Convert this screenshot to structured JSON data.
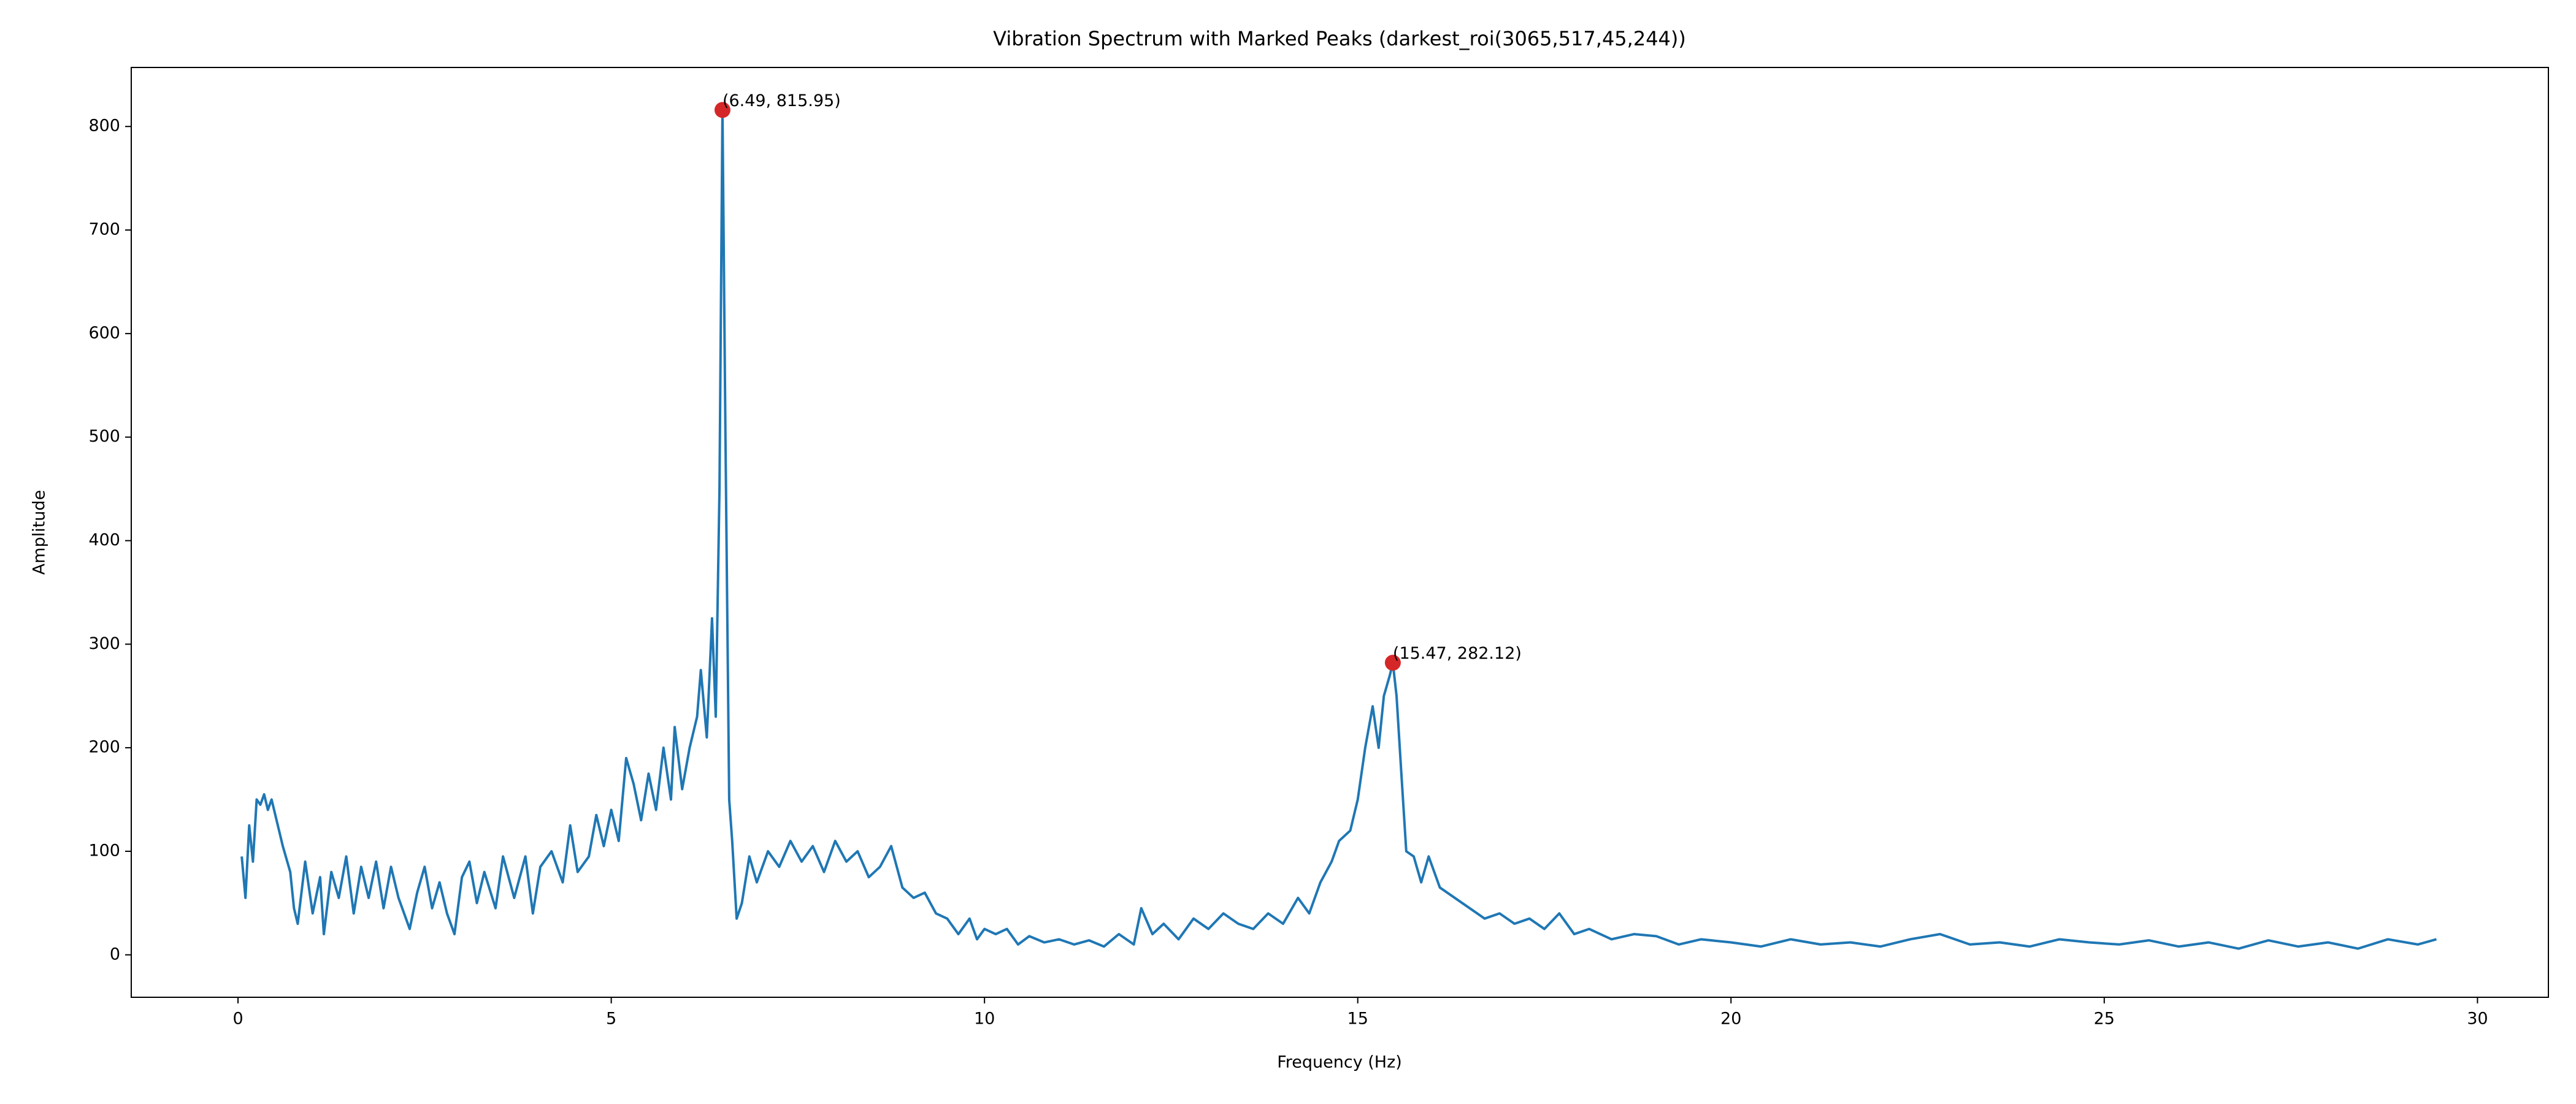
{
  "chart_data": {
    "type": "line",
    "title": "Vibration Spectrum with Marked Peaks (darkest_roi(3065,517,45,244))",
    "xlabel": "Frequency (Hz)",
    "ylabel": "Amplitude",
    "color": "#1f77b4",
    "x": [
      0.05,
      0.1,
      0.15,
      0.2,
      0.25,
      0.3,
      0.35,
      0.4,
      0.45,
      0.5,
      0.55,
      0.6,
      0.7,
      0.75,
      0.8,
      0.9,
      1.0,
      1.1,
      1.15,
      1.25,
      1.35,
      1.45,
      1.55,
      1.65,
      1.75,
      1.85,
      1.95,
      2.05,
      2.15,
      2.3,
      2.4,
      2.5,
      2.6,
      2.7,
      2.8,
      2.9,
      3.0,
      3.1,
      3.2,
      3.3,
      3.45,
      3.55,
      3.7,
      3.85,
      3.95,
      4.05,
      4.2,
      4.35,
      4.45,
      4.55,
      4.7,
      4.8,
      4.9,
      5.0,
      5.1,
      5.2,
      5.3,
      5.4,
      5.5,
      5.6,
      5.7,
      5.8,
      5.85,
      5.95,
      6.05,
      6.15,
      6.2,
      6.28,
      6.35,
      6.4,
      6.45,
      6.49,
      6.53,
      6.58,
      6.62,
      6.68,
      6.75,
      6.85,
      6.95,
      7.1,
      7.25,
      7.4,
      7.55,
      7.7,
      7.85,
      8.0,
      8.15,
      8.3,
      8.45,
      8.6,
      8.75,
      8.9,
      9.05,
      9.2,
      9.35,
      9.5,
      9.65,
      9.8,
      9.9,
      10.0,
      10.15,
      10.3,
      10.45,
      10.6,
      10.8,
      11.0,
      11.2,
      11.4,
      11.6,
      11.8,
      12.0,
      12.1,
      12.25,
      12.4,
      12.6,
      12.8,
      13.0,
      13.2,
      13.4,
      13.6,
      13.8,
      14.0,
      14.2,
      14.35,
      14.5,
      14.65,
      14.75,
      14.9,
      15.0,
      15.1,
      15.2,
      15.28,
      15.35,
      15.43,
      15.47,
      15.52,
      15.58,
      15.65,
      15.75,
      15.85,
      15.95,
      16.1,
      16.3,
      16.5,
      16.7,
      16.9,
      17.1,
      17.3,
      17.5,
      17.7,
      17.9,
      18.1,
      18.4,
      18.7,
      19.0,
      19.3,
      19.6,
      20.0,
      20.4,
      20.8,
      21.2,
      21.6,
      22.0,
      22.4,
      22.8,
      23.2,
      23.6,
      24.0,
      24.4,
      24.8,
      25.2,
      25.6,
      26.0,
      26.4,
      26.8,
      27.2,
      27.6,
      28.0,
      28.4,
      28.8,
      29.2,
      29.45
    ],
    "values": [
      95,
      55,
      125,
      90,
      150,
      145,
      155,
      140,
      150,
      135,
      120,
      105,
      80,
      45,
      30,
      90,
      40,
      75,
      20,
      80,
      55,
      95,
      40,
      85,
      55,
      90,
      45,
      85,
      55,
      25,
      60,
      85,
      45,
      70,
      40,
      20,
      75,
      90,
      50,
      80,
      45,
      95,
      55,
      95,
      40,
      85,
      100,
      70,
      125,
      80,
      95,
      135,
      105,
      140,
      110,
      190,
      165,
      130,
      175,
      140,
      200,
      150,
      220,
      160,
      200,
      230,
      275,
      210,
      325,
      230,
      450,
      815.95,
      500,
      150,
      110,
      35,
      50,
      95,
      70,
      100,
      85,
      110,
      90,
      105,
      80,
      110,
      90,
      100,
      75,
      85,
      105,
      65,
      55,
      60,
      40,
      35,
      20,
      35,
      15,
      25,
      20,
      25,
      10,
      18,
      12,
      15,
      10,
      14,
      8,
      20,
      10,
      45,
      20,
      30,
      15,
      35,
      25,
      40,
      30,
      25,
      40,
      30,
      55,
      40,
      70,
      90,
      110,
      120,
      150,
      200,
      240,
      200,
      250,
      270,
      282.12,
      250,
      180,
      100,
      95,
      70,
      95,
      65,
      55,
      45,
      35,
      40,
      30,
      35,
      25,
      40,
      20,
      25,
      15,
      20,
      18,
      10,
      15,
      12,
      8,
      15,
      10,
      12,
      8,
      15,
      20,
      10,
      12,
      8,
      15,
      12,
      10,
      14,
      8,
      12,
      6,
      14,
      8,
      12,
      6,
      15,
      10,
      15
    ],
    "annotations": [
      {
        "text": "(6.49, 815.95)",
        "x": 6.49,
        "y": 815.95
      },
      {
        "text": "(15.47, 282.12)",
        "x": 15.47,
        "y": 282.12
      }
    ],
    "marker_color": "#d62728",
    "xlim": [
      -1.43,
      30.95
    ],
    "ylim": [
      -41,
      857
    ],
    "xticks": [
      0,
      5,
      10,
      15,
      20,
      25,
      30
    ],
    "yticks": [
      0,
      100,
      200,
      300,
      400,
      500,
      600,
      700,
      800
    ],
    "grid": false
  }
}
